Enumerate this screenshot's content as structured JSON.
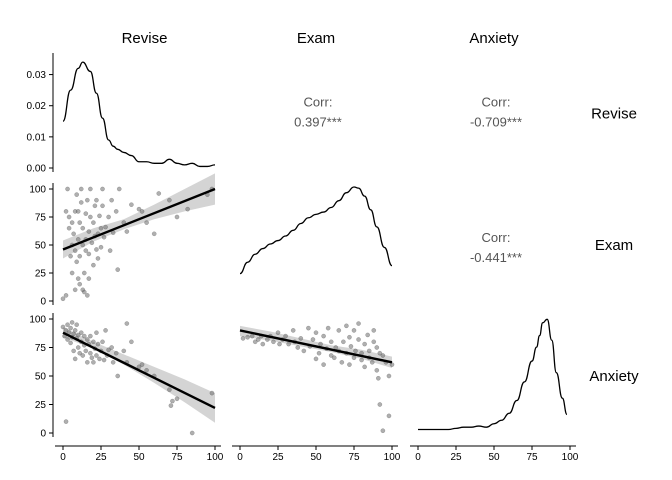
{
  "colors": {
    "line": "#000000",
    "point": "#6e6e6e",
    "band": "#cfcfcf",
    "text": "#000000",
    "corr_text": "#555555",
    "axis": "#000000"
  },
  "variables": [
    "Revise",
    "Exam",
    "Anxiety"
  ],
  "chart_data": {
    "type": "scatter",
    "layout": "pairs-plot 3x3 (density diagonal, scatter + lm lower, correlation upper)",
    "column_labels": [
      "Revise",
      "Exam",
      "Anxiety"
    ],
    "row_labels": [
      "Revise",
      "Exam",
      "Anxiety"
    ],
    "x_ticks": [
      0,
      25,
      50,
      75,
      100
    ],
    "y_ticks_density": [
      "0.00",
      "0.01",
      "0.02",
      "0.03"
    ],
    "y_ticks_value": [
      0,
      25,
      50,
      75,
      100
    ],
    "correlations": [
      {
        "row": 0,
        "col": 1,
        "label": "Corr:",
        "value": "0.397***"
      },
      {
        "row": 0,
        "col": 2,
        "label": "Corr:",
        "value": "-0.709***"
      },
      {
        "row": 1,
        "col": 2,
        "label": "Corr:",
        "value": "-0.441***"
      }
    ],
    "densities": {
      "Revise": {
        "ylim": [
          0,
          0.035
        ],
        "x": [
          0,
          5,
          10,
          13,
          18,
          22,
          26,
          30,
          33,
          36,
          40,
          45,
          50,
          55,
          60,
          65,
          70,
          75,
          80,
          85,
          90,
          95,
          100
        ],
        "y": [
          0.015,
          0.025,
          0.032,
          0.034,
          0.031,
          0.024,
          0.016,
          0.009,
          0.007,
          0.006,
          0.005,
          0.004,
          0.002,
          0.002,
          0.0015,
          0.0015,
          0.0028,
          0.0015,
          0.001,
          0.0015,
          0.0005,
          0.0005,
          0.001
        ]
      },
      "Exam": {
        "x": [
          0,
          5,
          10,
          15,
          20,
          25,
          30,
          35,
          40,
          45,
          50,
          55,
          60,
          65,
          70,
          75,
          78,
          82,
          86,
          90,
          95,
          100
        ],
        "y": [
          0.24,
          0.34,
          0.41,
          0.46,
          0.5,
          0.53,
          0.57,
          0.62,
          0.68,
          0.73,
          0.76,
          0.78,
          0.82,
          0.88,
          0.95,
          1.0,
          0.99,
          0.92,
          0.8,
          0.65,
          0.47,
          0.31
        ]
      },
      "Anxiety": {
        "x": [
          0,
          10,
          20,
          25,
          30,
          35,
          40,
          45,
          50,
          55,
          60,
          65,
          70,
          75,
          78,
          80,
          82,
          85,
          88,
          91,
          95,
          98
        ],
        "y": [
          0.03,
          0.03,
          0.03,
          0.04,
          0.05,
          0.05,
          0.06,
          0.05,
          0.08,
          0.11,
          0.17,
          0.28,
          0.44,
          0.62,
          0.74,
          0.84,
          0.95,
          0.98,
          0.8,
          0.52,
          0.3,
          0.16
        ]
      }
    },
    "scatter": [
      {
        "row": 1,
        "col": 0,
        "x_var": "Revise",
        "y_var": "Exam",
        "points": [
          [
            0,
            2
          ],
          [
            2,
            5
          ],
          [
            5,
            40
          ],
          [
            2,
            80
          ],
          [
            3,
            100
          ],
          [
            4,
            75
          ],
          [
            4,
            65
          ],
          [
            6,
            70
          ],
          [
            6,
            50
          ],
          [
            6,
            25
          ],
          [
            7,
            60
          ],
          [
            8,
            80
          ],
          [
            8,
            45
          ],
          [
            8,
            10
          ],
          [
            9,
            35
          ],
          [
            9,
            95
          ],
          [
            10,
            80
          ],
          [
            10,
            55
          ],
          [
            10,
            20
          ],
          [
            11,
            15
          ],
          [
            11,
            70
          ],
          [
            11,
            40
          ],
          [
            12,
            88
          ],
          [
            12,
            100
          ],
          [
            13,
            65
          ],
          [
            13,
            50
          ],
          [
            13,
            10
          ],
          [
            14,
            25
          ],
          [
            14,
            8
          ],
          [
            15,
            78
          ],
          [
            15,
            55
          ],
          [
            15,
            45
          ],
          [
            16,
            90
          ],
          [
            16,
            5
          ],
          [
            17,
            20
          ],
          [
            17,
            62
          ],
          [
            17,
            42
          ],
          [
            18,
            75
          ],
          [
            18,
            100
          ],
          [
            19,
            52
          ],
          [
            20,
            70
          ],
          [
            20,
            32
          ],
          [
            21,
            58
          ],
          [
            21,
            85
          ],
          [
            22,
            46
          ],
          [
            22,
            90
          ],
          [
            23,
            60
          ],
          [
            23,
            38
          ],
          [
            24,
            76
          ],
          [
            25,
            65
          ],
          [
            25,
            48
          ],
          [
            26,
            100
          ],
          [
            26,
            85
          ],
          [
            27,
            57
          ],
          [
            28,
            66
          ],
          [
            30,
            75
          ],
          [
            31,
            45
          ],
          [
            32,
            90
          ],
          [
            33,
            61
          ],
          [
            35,
            80
          ],
          [
            36,
            28
          ],
          [
            37,
            100
          ],
          [
            40,
            70
          ],
          [
            42,
            62
          ],
          [
            45,
            86
          ],
          [
            50,
            82
          ],
          [
            52,
            80
          ],
          [
            55,
            70
          ],
          [
            60,
            60
          ],
          [
            63,
            96
          ],
          [
            70,
            90
          ],
          [
            75,
            75
          ],
          [
            82,
            82
          ],
          [
            95,
            95
          ],
          [
            98,
            100
          ]
        ],
        "fit": {
          "x": [
            0,
            100
          ],
          "y": [
            46,
            100
          ]
        },
        "band": {
          "x": [
            0,
            20,
            40,
            60,
            80,
            100
          ],
          "lower": [
            38,
            53,
            64,
            73,
            80,
            86
          ],
          "upper": [
            54,
            65,
            73,
            86,
            100,
            114
          ]
        }
      },
      {
        "row": 2,
        "col": 0,
        "x_var": "Revise",
        "y_var": "Anxiety",
        "points": [
          [
            0,
            93
          ],
          [
            1,
            85
          ],
          [
            2,
            10
          ],
          [
            2,
            90
          ],
          [
            3,
            82
          ],
          [
            3,
            95
          ],
          [
            4,
            88
          ],
          [
            5,
            79
          ],
          [
            5,
            92
          ],
          [
            6,
            84
          ],
          [
            6,
            97
          ],
          [
            7,
            72
          ],
          [
            7,
            87
          ],
          [
            8,
            90
          ],
          [
            8,
            65
          ],
          [
            9,
            83
          ],
          [
            9,
            95
          ],
          [
            10,
            75
          ],
          [
            10,
            86
          ],
          [
            11,
            70
          ],
          [
            12,
            88
          ],
          [
            12,
            80
          ],
          [
            13,
            68
          ],
          [
            14,
            85
          ],
          [
            14,
            77
          ],
          [
            15,
            72
          ],
          [
            16,
            82
          ],
          [
            16,
            62
          ],
          [
            17,
            78
          ],
          [
            18,
            85
          ],
          [
            18,
            70
          ],
          [
            19,
            66
          ],
          [
            20,
            80
          ],
          [
            20,
            62
          ],
          [
            21,
            74
          ],
          [
            22,
            68
          ],
          [
            22,
            88
          ],
          [
            23,
            78
          ],
          [
            24,
            65
          ],
          [
            25,
            72
          ],
          [
            26,
            80
          ],
          [
            27,
            64
          ],
          [
            28,
            90
          ],
          [
            29,
            68
          ],
          [
            30,
            73
          ],
          [
            32,
            75
          ],
          [
            33,
            62
          ],
          [
            35,
            70
          ],
          [
            36,
            50
          ],
          [
            40,
            72
          ],
          [
            42,
            62
          ],
          [
            42,
            96
          ],
          [
            45,
            80
          ],
          [
            50,
            58
          ],
          [
            52,
            60
          ],
          [
            55,
            55
          ],
          [
            60,
            50
          ],
          [
            70,
            38
          ],
          [
            71,
            24
          ],
          [
            72,
            28
          ],
          [
            75,
            30
          ],
          [
            85,
            0
          ],
          [
            98,
            35
          ]
        ],
        "fit": {
          "x": [
            0,
            100
          ],
          "y": [
            88,
            22
          ]
        },
        "band": {
          "x": [
            0,
            20,
            40,
            60,
            80,
            100
          ],
          "lower": [
            84,
            74,
            60,
            44,
            27,
            9
          ],
          "upper": [
            93,
            80,
            69,
            58,
            47,
            35
          ]
        }
      },
      {
        "row": 2,
        "col": 1,
        "x_var": "Exam",
        "y_var": "Anxiety",
        "points": [
          [
            2,
            83
          ],
          [
            5,
            84
          ],
          [
            8,
            85
          ],
          [
            10,
            80
          ],
          [
            12,
            82
          ],
          [
            14,
            85
          ],
          [
            15,
            78
          ],
          [
            18,
            82
          ],
          [
            20,
            85
          ],
          [
            22,
            80
          ],
          [
            25,
            88
          ],
          [
            26,
            78
          ],
          [
            28,
            82
          ],
          [
            30,
            85
          ],
          [
            32,
            78
          ],
          [
            35,
            90
          ],
          [
            36,
            80
          ],
          [
            38,
            75
          ],
          [
            40,
            83
          ],
          [
            42,
            72
          ],
          [
            45,
            92
          ],
          [
            46,
            76
          ],
          [
            48,
            82
          ],
          [
            50,
            65
          ],
          [
            50,
            88
          ],
          [
            52,
            70
          ],
          [
            53,
            78
          ],
          [
            55,
            60
          ],
          [
            55,
            85
          ],
          [
            57,
            74
          ],
          [
            58,
            92
          ],
          [
            60,
            68
          ],
          [
            60,
            80
          ],
          [
            62,
            66
          ],
          [
            63,
            75
          ],
          [
            65,
            90
          ],
          [
            65,
            72
          ],
          [
            67,
            62
          ],
          [
            68,
            80
          ],
          [
            70,
            94
          ],
          [
            70,
            70
          ],
          [
            72,
            60
          ],
          [
            72,
            84
          ],
          [
            73,
            76
          ],
          [
            75,
            66
          ],
          [
            75,
            90
          ],
          [
            76,
            72
          ],
          [
            78,
            96
          ],
          [
            78,
            82
          ],
          [
            80,
            64
          ],
          [
            80,
            70
          ],
          [
            82,
            78
          ],
          [
            82,
            58
          ],
          [
            84,
            86
          ],
          [
            85,
            72
          ],
          [
            85,
            66
          ],
          [
            87,
            62
          ],
          [
            88,
            80
          ],
          [
            88,
            90
          ],
          [
            90,
            75
          ],
          [
            90,
            55
          ],
          [
            91,
            48
          ],
          [
            92,
            70
          ],
          [
            92,
            25
          ],
          [
            94,
            68
          ],
          [
            94,
            2
          ],
          [
            96,
            62
          ],
          [
            98,
            50
          ],
          [
            98,
            15
          ],
          [
            100,
            60
          ]
        ],
        "fit": {
          "x": [
            0,
            100
          ],
          "y": [
            90,
            62
          ]
        },
        "band": {
          "x": [
            0,
            20,
            40,
            60,
            80,
            100
          ],
          "lower": [
            85,
            81,
            76,
            71,
            65,
            57
          ],
          "upper": [
            94,
            89,
            83,
            77,
            73,
            67
          ]
        }
      }
    ]
  }
}
